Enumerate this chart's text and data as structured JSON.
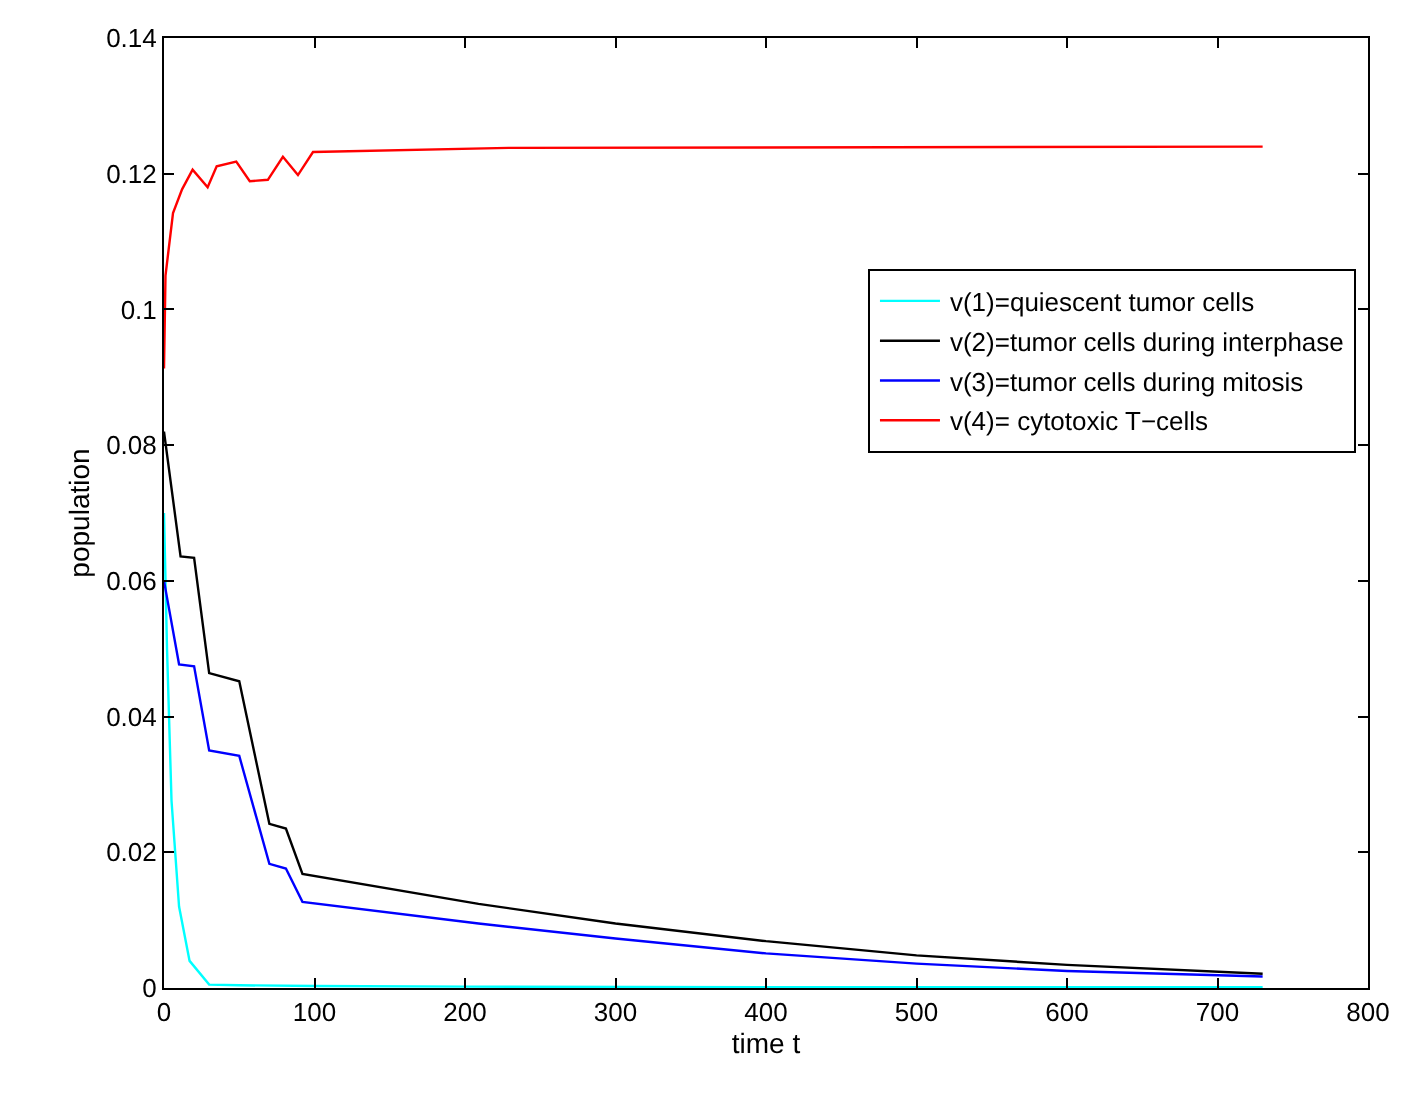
{
  "chart_data": {
    "type": "line",
    "xlabel": "time t",
    "ylabel": "population",
    "xlim": [
      0,
      800
    ],
    "ylim": [
      0,
      0.14
    ],
    "xticks": [
      0,
      100,
      200,
      300,
      400,
      500,
      600,
      700,
      800
    ],
    "yticks": [
      0,
      0.02,
      0.04,
      0.06,
      0.08,
      0.1,
      0.12,
      0.14
    ],
    "legend": "right",
    "marker": "none",
    "line_style": "solid",
    "series": [
      {
        "name": "v(1)=quiescent tumor cells",
        "color": "#00ffff",
        "x": [
          0,
          2,
          5,
          10,
          17,
          30,
          50,
          100,
          200,
          400,
          730
        ],
        "values": [
          0.07,
          0.05,
          0.0276,
          0.012,
          0.004,
          0.0005,
          0.0004,
          0.0003,
          0.0002,
          0.0001,
          0.0001
        ]
      },
      {
        "name": "v(2)=tumor cells during interphase",
        "color": "#000000",
        "x": [
          0,
          11,
          20,
          30,
          50,
          70,
          81,
          92,
          209,
          300,
          400,
          500,
          600,
          730
        ],
        "values": [
          0.082,
          0.0636,
          0.0634,
          0.0464,
          0.0452,
          0.0242,
          0.0235,
          0.0168,
          0.0124,
          0.0095,
          0.0069,
          0.0048,
          0.0034,
          0.0021
        ]
      },
      {
        "name": "v(3)=tumor cells during mitosis",
        "color": "#0000ff",
        "x": [
          0,
          10,
          20,
          30,
          50,
          70,
          81,
          92,
          209,
          300,
          400,
          500,
          600,
          730
        ],
        "values": [
          0.06,
          0.0477,
          0.0474,
          0.035,
          0.0342,
          0.0183,
          0.0176,
          0.0127,
          0.0095,
          0.0073,
          0.0051,
          0.0036,
          0.0025,
          0.0017
        ]
      },
      {
        "name": "v(4)= cytotoxic T−cells",
        "color": "#ff0000",
        "x": [
          0,
          1,
          6,
          12,
          19,
          29,
          35,
          48,
          57,
          69,
          79,
          89,
          99,
          229,
          730
        ],
        "values": [
          0.0913,
          0.105,
          0.1142,
          0.1177,
          0.1206,
          0.118,
          0.1211,
          0.1218,
          0.1189,
          0.1191,
          0.1225,
          0.1198,
          0.1232,
          0.1238,
          0.124
        ]
      }
    ]
  }
}
